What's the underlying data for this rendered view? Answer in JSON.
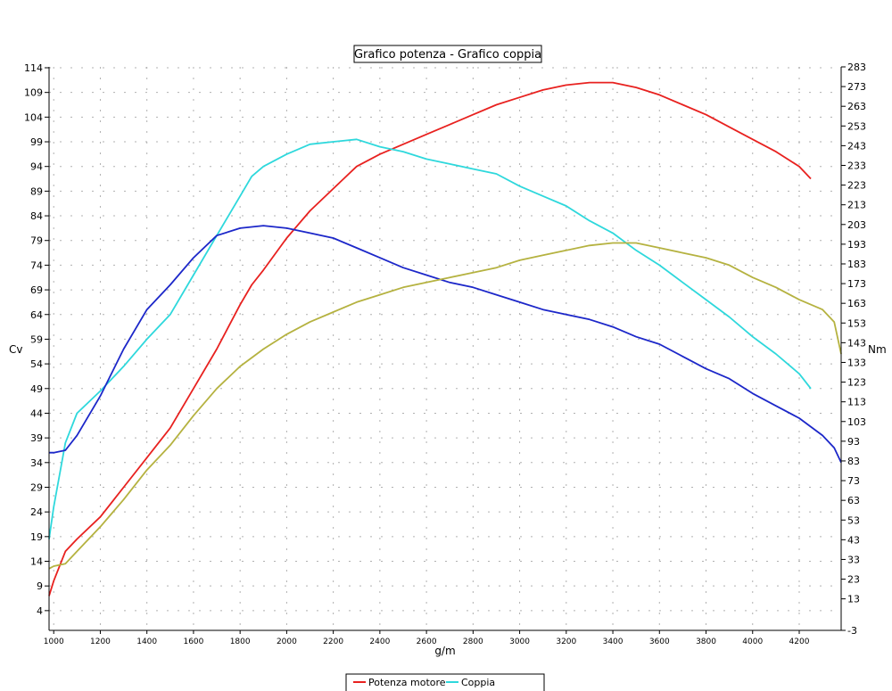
{
  "chart_data": {
    "type": "line",
    "title": "Grafico potenza - Grafico coppia",
    "xlabel": "g/m",
    "ylabel_left": "Cv",
    "ylabel_right": "Nm",
    "xlim": [
      980,
      4380
    ],
    "ylim_left": [
      0,
      114
    ],
    "ylim_right": [
      -3,
      283
    ],
    "x_ticks": [
      1000,
      1200,
      1400,
      1600,
      1800,
      2000,
      2200,
      2400,
      2600,
      2800,
      3000,
      3200,
      3400,
      3600,
      3800,
      4000,
      4200
    ],
    "y_ticks_left": [
      4,
      9,
      14,
      19,
      24,
      29,
      34,
      39,
      44,
      49,
      54,
      59,
      64,
      69,
      74,
      79,
      84,
      89,
      94,
      99,
      104,
      109,
      114
    ],
    "y_ticks_right": [
      -3,
      13,
      23,
      33,
      43,
      53,
      63,
      73,
      83,
      93,
      103,
      113,
      123,
      133,
      143,
      153,
      163,
      173,
      183,
      193,
      203,
      213,
      223,
      233,
      243,
      253,
      263,
      273,
      283
    ],
    "grid": true,
    "legend_position": "bottom-center",
    "legend_entries": [
      "Potenza motore",
      "Coppia"
    ],
    "series": [
      {
        "name": "Potenza motore",
        "axis": "left",
        "color": "#e8211f",
        "x": [
          980,
          1000,
          1050,
          1100,
          1200,
          1300,
          1400,
          1500,
          1600,
          1700,
          1800,
          1850,
          1900,
          2000,
          2100,
          2200,
          2300,
          2400,
          2500,
          2600,
          2700,
          2800,
          2900,
          3000,
          3100,
          3200,
          3300,
          3400,
          3450,
          3500,
          3600,
          3700,
          3800,
          3900,
          4000,
          4100,
          4200,
          4250
        ],
        "y": [
          7,
          10,
          16,
          18.5,
          23,
          29,
          35,
          41,
          49,
          57,
          66,
          70,
          73,
          79.5,
          85,
          89.5,
          94,
          96.5,
          98.5,
          100.5,
          102.5,
          104.5,
          106.5,
          108,
          109.5,
          110.5,
          111,
          111,
          110.5,
          110,
          108.5,
          106.5,
          104.5,
          102,
          99.5,
          97,
          94,
          91.5
        ]
      },
      {
        "name": "Coppia",
        "axis": "left",
        "color": "#2ed8dc",
        "x": [
          980,
          1000,
          1050,
          1100,
          1200,
          1300,
          1400,
          1500,
          1600,
          1700,
          1800,
          1850,
          1900,
          2000,
          2100,
          2200,
          2300,
          2400,
          2500,
          2600,
          2700,
          2800,
          2900,
          3000,
          3100,
          3200,
          3300,
          3400,
          3500,
          3600,
          3700,
          3800,
          3900,
          4000,
          4100,
          4200,
          4250
        ],
        "y": [
          18.5,
          25,
          38,
          44,
          48.5,
          53.5,
          59,
          64,
          72,
          80,
          88,
          92,
          94,
          96.5,
          98.5,
          99,
          99.5,
          98,
          97,
          95.5,
          94.5,
          93.5,
          92.5,
          90,
          88,
          86,
          83,
          80.5,
          77,
          74,
          70.5,
          67,
          63.5,
          59.5,
          56,
          52,
          49
        ]
      },
      {
        "name": "",
        "axis": "left",
        "color": "#1c27c9",
        "x": [
          980,
          1000,
          1050,
          1100,
          1200,
          1300,
          1400,
          1500,
          1600,
          1700,
          1800,
          1900,
          2000,
          2100,
          2200,
          2300,
          2400,
          2500,
          2600,
          2700,
          2800,
          2900,
          3000,
          3100,
          3200,
          3300,
          3400,
          3500,
          3600,
          3700,
          3800,
          3900,
          4000,
          4100,
          4200,
          4300,
          4350,
          4380
        ],
        "y": [
          36,
          36,
          36.5,
          39.5,
          47.5,
          57,
          65,
          70,
          75.5,
          80,
          81.5,
          82,
          81.5,
          80.5,
          79.5,
          77.5,
          75.5,
          73.5,
          72,
          70.5,
          69.5,
          68,
          66.5,
          65,
          64,
          63,
          61.5,
          59.5,
          58,
          55.5,
          53,
          51,
          48,
          45.5,
          43,
          39.5,
          37,
          34
        ]
      },
      {
        "name": "",
        "axis": "left",
        "color": "#b5b240",
        "x": [
          980,
          1000,
          1050,
          1100,
          1200,
          1300,
          1400,
          1500,
          1600,
          1700,
          1800,
          1900,
          2000,
          2100,
          2200,
          2300,
          2400,
          2500,
          2600,
          2700,
          2800,
          2900,
          3000,
          3100,
          3200,
          3300,
          3400,
          3450,
          3500,
          3600,
          3700,
          3800,
          3900,
          4000,
          4100,
          4200,
          4300,
          4350,
          4380
        ],
        "y": [
          12.5,
          13,
          13.5,
          16,
          21,
          26.5,
          32.5,
          37.5,
          43.5,
          49,
          53.5,
          57,
          60,
          62.5,
          64.5,
          66.5,
          68,
          69.5,
          70.5,
          71.5,
          72.5,
          73.5,
          75,
          76,
          77,
          78,
          78.5,
          78.5,
          78.5,
          77.5,
          76.5,
          75.5,
          74,
          71.5,
          69.5,
          67,
          65,
          62.5,
          56
        ]
      }
    ]
  }
}
